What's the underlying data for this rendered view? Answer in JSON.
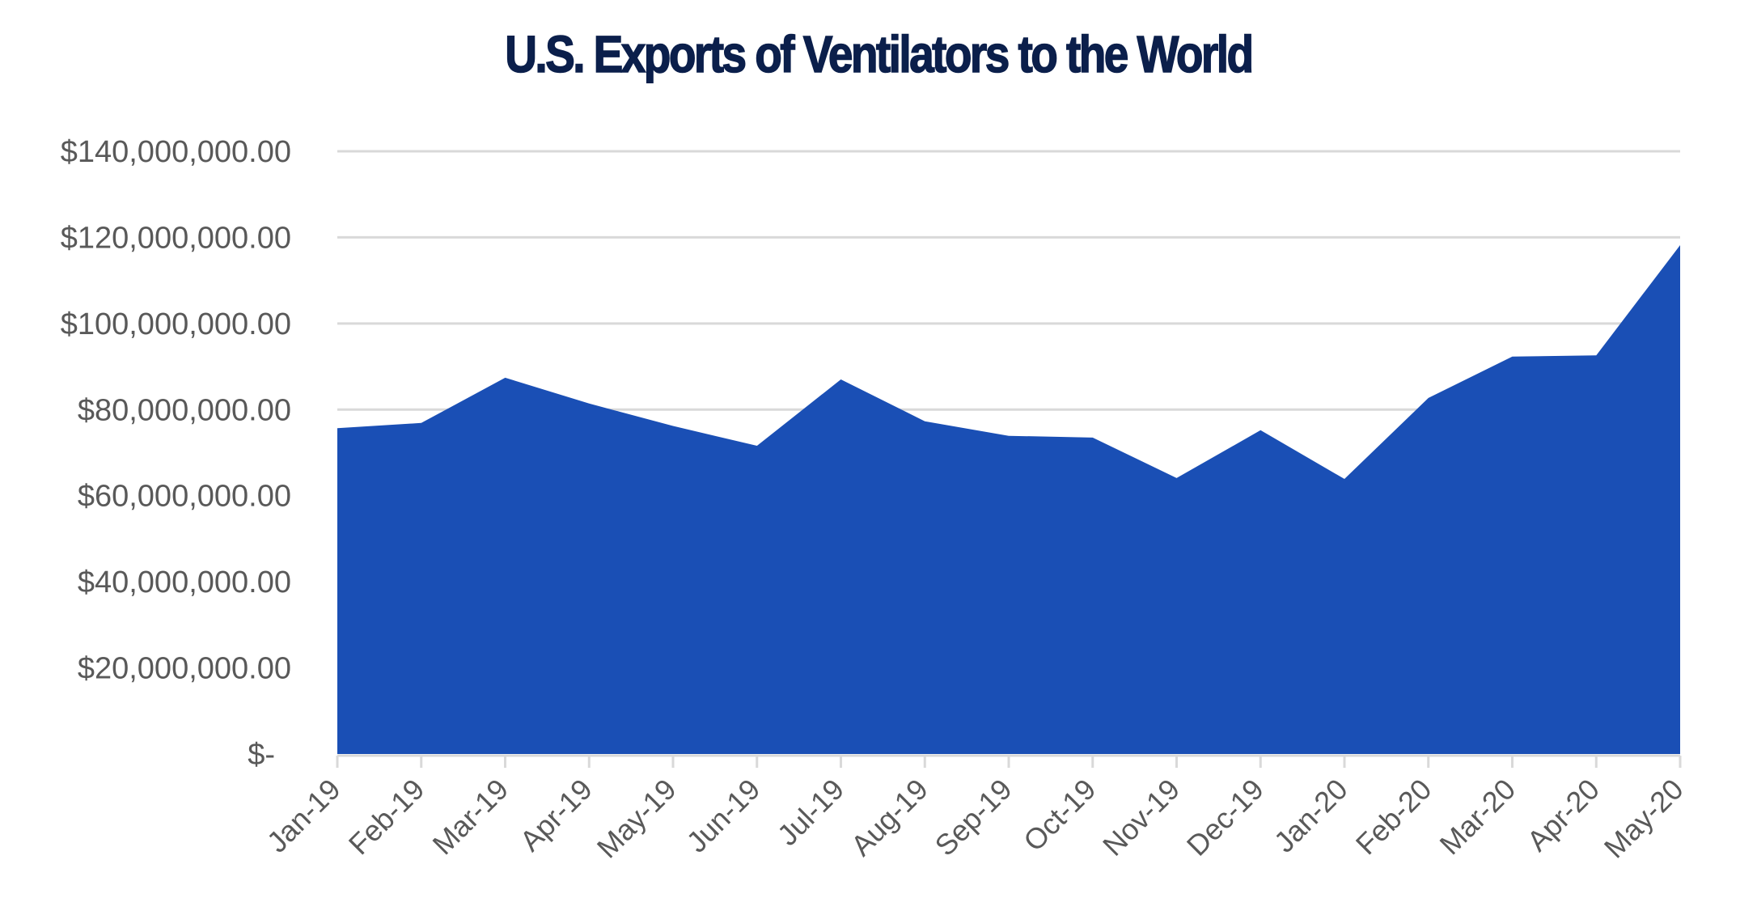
{
  "chart_data": {
    "type": "area",
    "title": "U.S. Exports of Ventilators to the World",
    "xlabel": "",
    "ylabel": "",
    "categories": [
      "Jan-19",
      "Feb-19",
      "Mar-19",
      "Apr-19",
      "May-19",
      "Jun-19",
      "Jul-19",
      "Aug-19",
      "Sep-19",
      "Oct-19",
      "Nov-19",
      "Dec-19",
      "Jan-20",
      "Feb-20",
      "Mar-20",
      "Apr-20",
      "May-20"
    ],
    "series": [
      {
        "name": "U.S. Exports of Ventilators",
        "color": "#1a4fb5",
        "values": [
          75700000,
          76900000,
          87400000,
          81400000,
          76200000,
          71600000,
          87000000,
          77300000,
          73900000,
          73500000,
          64100000,
          75200000,
          63900000,
          82700000,
          92300000,
          92600000,
          118200000
        ]
      }
    ],
    "ylim": [
      0,
      140000000
    ],
    "y_ticks": [
      0,
      20000000,
      40000000,
      60000000,
      80000000,
      100000000,
      120000000,
      140000000
    ],
    "y_tick_labels": [
      "$-",
      "$20,000,000.00",
      "$40,000,000.00",
      "$60,000,000.00",
      "$80,000,000.00",
      "$100,000,000.00",
      "$120,000,000.00",
      "$140,000,000.00"
    ],
    "grid": true,
    "legend": "none",
    "gridline_color": "#d9d9d9",
    "axis_label_color": "#595959",
    "title_color": "#0b1f4b"
  }
}
